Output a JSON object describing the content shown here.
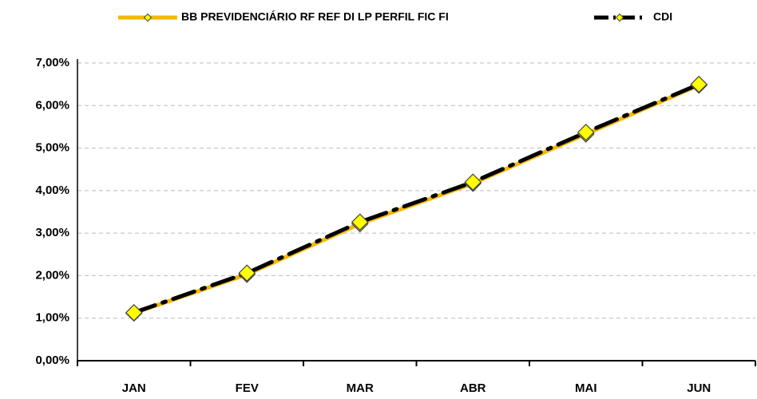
{
  "chart_data": {
    "type": "line",
    "categories": [
      "JAN",
      "FEV",
      "MAR",
      "ABR",
      "MAI",
      "JUN"
    ],
    "series": [
      {
        "name": "BB PREVIDENCIÁRIO RF REF DI LP PERFIL FIC FI",
        "color": "#f5b800",
        "values": [
          1.12,
          2.03,
          3.22,
          4.17,
          5.33,
          6.48
        ]
      },
      {
        "name": "CDI",
        "color": "#000000",
        "values": [
          1.13,
          2.06,
          3.26,
          4.2,
          5.37,
          6.5
        ]
      }
    ],
    "ylim": [
      0,
      7
    ],
    "yticks": [
      {
        "value": 0,
        "label": "0,00%"
      },
      {
        "value": 1,
        "label": "1,00%"
      },
      {
        "value": 2,
        "label": "2,00%"
      },
      {
        "value": 3,
        "label": "3,00%"
      },
      {
        "value": 4,
        "label": "4,00%"
      },
      {
        "value": 5,
        "label": "5,00%"
      },
      {
        "value": 6,
        "label": "6,00%"
      },
      {
        "value": 7,
        "label": "7,00%"
      }
    ],
    "grid": true,
    "legend": "top",
    "marker_color": "#ffff00"
  }
}
